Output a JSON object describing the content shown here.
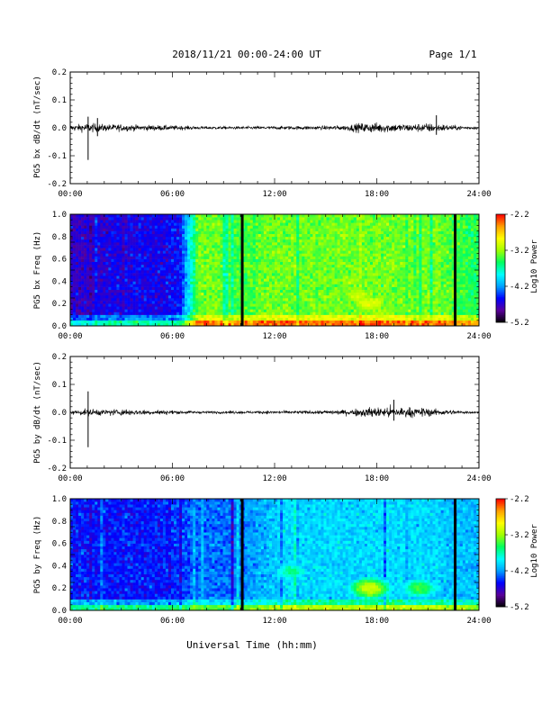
{
  "header": {
    "date_range": "2018/11/21  00:00-24:00 UT",
    "page": "Page 1/1"
  },
  "footer": {
    "xlabel": "Universal Time (hh:mm)"
  },
  "colorbar": {
    "title": "Log10 Power",
    "ticks": [
      "-2.2",
      "-3.2",
      "-4.2",
      "-5.2"
    ],
    "range": [
      -5.2,
      -2.2
    ],
    "colors": [
      "#000000",
      "#5a009a",
      "#0000ff",
      "#00a0ff",
      "#00ffff",
      "#00ff60",
      "#a0ff00",
      "#ffff00",
      "#ffa000",
      "#ff0000"
    ]
  },
  "chart_data": [
    {
      "type": "line",
      "ylabel": "PG5 bx dB/dt (nT/sec)",
      "xticks": [
        "00:00",
        "06:00",
        "12:00",
        "18:00",
        "24:00"
      ],
      "yticks": [
        "0.2",
        "0.1",
        "0.0",
        "-0.1",
        "-0.2"
      ],
      "xlim": [
        0,
        24
      ],
      "ylim": [
        -0.2,
        0.2
      ],
      "envelope": {
        "hours": [
          0,
          0.5,
          1,
          1.5,
          2,
          3,
          4,
          5,
          6,
          7,
          8,
          10,
          12,
          14,
          16,
          17,
          18,
          19,
          20,
          21,
          22,
          23,
          24
        ],
        "amplitude": [
          0.012,
          0.015,
          0.02,
          0.018,
          0.015,
          0.015,
          0.012,
          0.012,
          0.01,
          0.008,
          0.006,
          0.006,
          0.007,
          0.008,
          0.01,
          0.02,
          0.022,
          0.018,
          0.016,
          0.02,
          0.014,
          0.008,
          0.006
        ]
      },
      "spikes": [
        {
          "hour": 1.05,
          "min": -0.115,
          "max": 0.04
        },
        {
          "hour": 1.6,
          "min": -0.03,
          "max": 0.035
        },
        {
          "hour": 21.5,
          "min": -0.025,
          "max": 0.045
        }
      ]
    },
    {
      "type": "heatmap",
      "ylabel": "PG5 bx Freq (Hz)",
      "xticks": [
        "00:00",
        "06:00",
        "12:00",
        "18:00",
        "24:00"
      ],
      "yticks": [
        "1.0",
        "0.8",
        "0.6",
        "0.4",
        "0.2",
        "0.0"
      ],
      "xlim": [
        0,
        24
      ],
      "ylim": [
        0,
        1
      ],
      "level_by_hour": [
        -4.7,
        -4.7,
        -4.6,
        -4.6,
        -4.6,
        -4.6,
        -4.5,
        -3.3,
        -3.3,
        -3.4,
        -3.4,
        -3.3,
        -3.3,
        -3.3,
        -3.3,
        -3.3,
        -3.3,
        -3.3,
        -3.3,
        -3.3,
        -3.3,
        -3.3,
        -3.4,
        -3.5
      ],
      "dark_bands_hours": [
        10.1,
        22.6
      ],
      "enhancements": [
        {
          "hour": 17.6,
          "freq": 0.2,
          "level": -2.9
        },
        {
          "hour": 16.9,
          "freq": 0.28,
          "level": -3.0
        }
      ]
    },
    {
      "type": "line",
      "ylabel": "PG5 by dB/dt (nT/sec)",
      "xticks": [
        "00:00",
        "06:00",
        "12:00",
        "18:00",
        "24:00"
      ],
      "yticks": [
        "0.2",
        "0.1",
        "0.0",
        "-0.1",
        "-0.2"
      ],
      "xlim": [
        0,
        24
      ],
      "ylim": [
        -0.2,
        0.2
      ],
      "envelope": {
        "hours": [
          0,
          0.5,
          1,
          1.5,
          2,
          3,
          4,
          5,
          6,
          7,
          8,
          10,
          12,
          14,
          16,
          17,
          18,
          19,
          20,
          21,
          22,
          23,
          24
        ],
        "amplitude": [
          0.008,
          0.01,
          0.015,
          0.014,
          0.012,
          0.014,
          0.012,
          0.01,
          0.008,
          0.006,
          0.005,
          0.006,
          0.006,
          0.007,
          0.01,
          0.018,
          0.022,
          0.025,
          0.02,
          0.018,
          0.012,
          0.006,
          0.005
        ]
      },
      "spikes": [
        {
          "hour": 1.05,
          "min": -0.125,
          "max": 0.075
        },
        {
          "hour": 19.0,
          "min": -0.03,
          "max": 0.045
        }
      ]
    },
    {
      "type": "heatmap",
      "ylabel": "PG5 by Freq (Hz)",
      "xticks": [
        "00:00",
        "06:00",
        "12:00",
        "18:00",
        "24:00"
      ],
      "yticks": [
        "1.0",
        "0.8",
        "0.6",
        "0.4",
        "0.2",
        "0.0"
      ],
      "xlim": [
        0,
        24
      ],
      "ylim": [
        0,
        1
      ],
      "level_by_hour": [
        -4.5,
        -4.5,
        -4.5,
        -4.5,
        -4.5,
        -4.5,
        -4.4,
        -4.3,
        -4.3,
        -4.3,
        -4.2,
        -4.1,
        -4.0,
        -4.0,
        -4.0,
        -4.0,
        -4.0,
        -4.0,
        -4.0,
        -4.0,
        -4.0,
        -4.0,
        -4.1,
        -4.1
      ],
      "dark_bands_hours": [
        10.1,
        22.6
      ],
      "enhancements": [
        {
          "hour": 17.6,
          "freq": 0.2,
          "level": -3.0
        },
        {
          "hour": 13.0,
          "freq": 0.35,
          "level": -3.6
        },
        {
          "hour": 20.5,
          "freq": 0.2,
          "level": -3.4
        }
      ]
    }
  ]
}
